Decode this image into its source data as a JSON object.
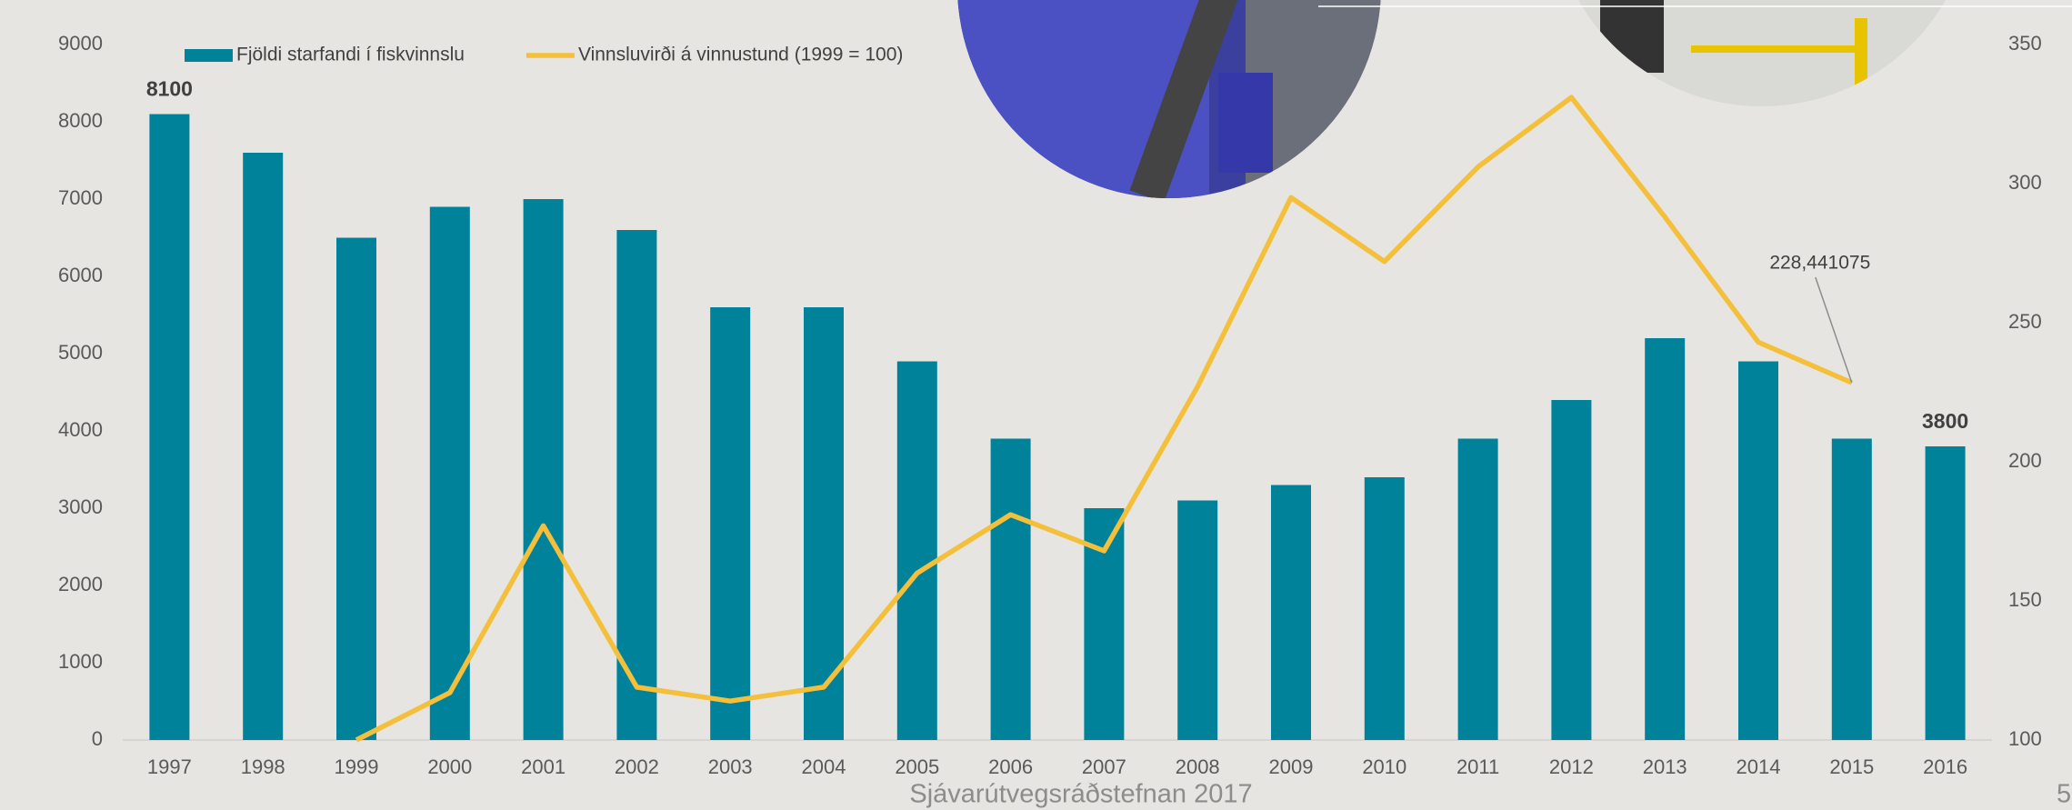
{
  "chart_data": {
    "type": "bar-line",
    "categories": [
      "1997",
      "1998",
      "1999",
      "2000",
      "2001",
      "2002",
      "2003",
      "2004",
      "2005",
      "2006",
      "2007",
      "2008",
      "2009",
      "2010",
      "2011",
      "2012",
      "2013",
      "2014",
      "2015",
      "2016"
    ],
    "series": [
      {
        "name": "Fjöldi starfandi í fiskvinnslu",
        "type": "bar",
        "axis": "y",
        "color": "#00829b",
        "values": [
          8100,
          7600,
          6500,
          6900,
          7000,
          6600,
          5600,
          5600,
          4900,
          3900,
          3000,
          3100,
          3300,
          3400,
          3900,
          4400,
          5200,
          4900,
          3900,
          3800
        ]
      },
      {
        "name": "Vinnsluvirði á vinnustund (1999 = 100)",
        "type": "line",
        "axis": "y2",
        "color": "#f4c03c",
        "values": [
          null,
          null,
          100,
          117,
          177,
          119,
          114,
          119,
          160,
          181,
          168,
          227,
          295,
          272,
          306,
          331,
          288,
          243,
          228.441075,
          null
        ],
        "value_labels": [
          null,
          null,
          null,
          null,
          null,
          null,
          null,
          null,
          null,
          null,
          null,
          null,
          null,
          null,
          null,
          null,
          null,
          null,
          "228,441075",
          null
        ]
      }
    ],
    "ylim": [
      0,
      9000
    ],
    "yticks": [
      0,
      1000,
      2000,
      3000,
      4000,
      5000,
      6000,
      7000,
      8000,
      9000
    ],
    "y2lim": [
      100,
      350
    ],
    "y2ticks": [
      100,
      150,
      200,
      250,
      300,
      350
    ],
    "grid": false,
    "legend": "top-left"
  },
  "footer": "Sjávarútvegsráðstefnan 2017",
  "page_number": "5"
}
